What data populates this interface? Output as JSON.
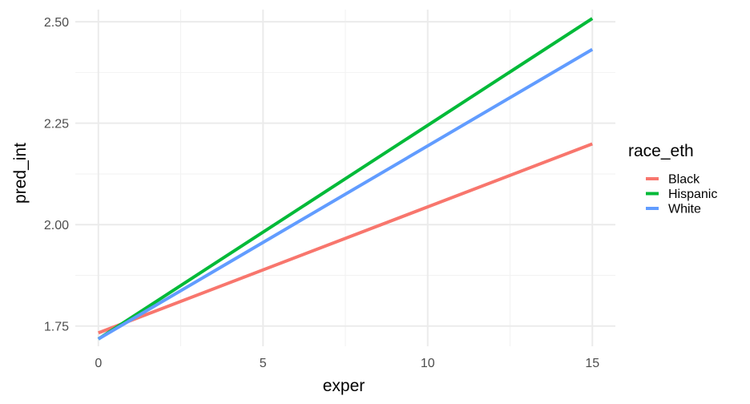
{
  "chart_data": {
    "type": "line",
    "xlabel": "exper",
    "ylabel": "pred_int",
    "xlim": [
      -0.7,
      15.7
    ],
    "ylim": [
      1.7,
      2.53
    ],
    "x_ticks": [
      0,
      5,
      10,
      15
    ],
    "x_tick_labels": [
      "0",
      "5",
      "10",
      "15"
    ],
    "y_ticks": [
      1.75,
      2.0,
      2.25,
      2.5
    ],
    "y_tick_labels": [
      "1.75",
      "2.00",
      "2.25",
      "2.50"
    ],
    "grid": true,
    "legend": {
      "title": "race_eth",
      "position": "right"
    },
    "series": [
      {
        "name": "Black",
        "color": "#F8766D",
        "x": [
          0,
          15
        ],
        "y": [
          1.733,
          2.199
        ]
      },
      {
        "name": "Hispanic",
        "color": "#00BA38",
        "x": [
          0,
          15
        ],
        "y": [
          1.718,
          2.508
        ]
      },
      {
        "name": "White",
        "color": "#619CFF",
        "x": [
          0,
          15
        ],
        "y": [
          1.718,
          2.432
        ]
      }
    ]
  }
}
